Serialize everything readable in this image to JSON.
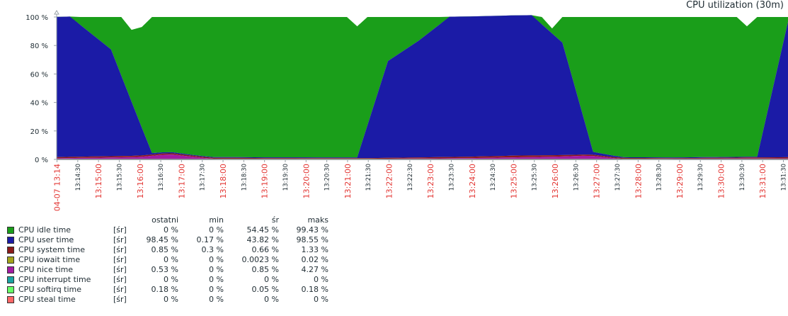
{
  "title": "CPU utilization (30m)",
  "chart_data": {
    "type": "area",
    "stacked": true,
    "ylim": [
      0,
      100
    ],
    "y_ticks": [
      "0 %",
      "20 %",
      "40 %",
      "60 %",
      "80 %",
      "100 %"
    ],
    "x_tick_labels": [
      {
        "label": "04-07 13:14",
        "red": true
      },
      {
        "label": "13:14:30",
        "red": false
      },
      {
        "label": "13:15:00",
        "red": true
      },
      {
        "label": "13:15:30",
        "red": false
      },
      {
        "label": "13:16:00",
        "red": true
      },
      {
        "label": "13:16:30",
        "red": false
      },
      {
        "label": "13:17:00",
        "red": true
      },
      {
        "label": "13:17:30",
        "red": false
      },
      {
        "label": "13:18:00",
        "red": true
      },
      {
        "label": "13:18:30",
        "red": false
      },
      {
        "label": "13:19:00",
        "red": true
      },
      {
        "label": "13:19:30",
        "red": false
      },
      {
        "label": "13:20:00",
        "red": true
      },
      {
        "label": "13:20:30",
        "red": false
      },
      {
        "label": "13:21:00",
        "red": true
      },
      {
        "label": "13:21:30",
        "red": false
      },
      {
        "label": "13:22:00",
        "red": true
      },
      {
        "label": "13:22:30",
        "red": false
      },
      {
        "label": "13:23:00",
        "red": true
      },
      {
        "label": "13:23:30",
        "red": false
      },
      {
        "label": "13:24:00",
        "red": true
      },
      {
        "label": "13:24:30",
        "red": false
      },
      {
        "label": "13:25:00",
        "red": true
      },
      {
        "label": "13:25:30",
        "red": false
      },
      {
        "label": "13:26:00",
        "red": true
      },
      {
        "label": "13:26:30",
        "red": false
      },
      {
        "label": "13:27:00",
        "red": true
      },
      {
        "label": "13:27:30",
        "red": false
      },
      {
        "label": "13:28:00",
        "red": true
      },
      {
        "label": "13:28:30",
        "red": false
      },
      {
        "label": "13:29:00",
        "red": true
      },
      {
        "label": "13:29:30",
        "red": false
      },
      {
        "label": "13:30:00",
        "red": true
      },
      {
        "label": "13:30:30",
        "red": false
      },
      {
        "label": "13:31:00",
        "red": true
      },
      {
        "label": "13:31:30",
        "red": false
      }
    ],
    "x_minutes": [
      0,
      0.3,
      1.3,
      2.3,
      3.3,
      4.3,
      5.3,
      6.3,
      7.3,
      8.3,
      9.3,
      10.3,
      11.3,
      12.3,
      13.3,
      14.3,
      15.3,
      16.3,
      17.3,
      18.3,
      19.3,
      20.3,
      21.3,
      22.3,
      23.3,
      24.3,
      25.3,
      26.3,
      27.3,
      28.3,
      29.3,
      30.3,
      31.3,
      32.3,
      33.3,
      34.3,
      35.3,
      36.3,
      37.3,
      38.3,
      39.3,
      40.3,
      41.3,
      42.3,
      43.3,
      44.3,
      45.3,
      46.3,
      47.3,
      48.3,
      49.3,
      50.3,
      51.3,
      52.3,
      53.3,
      54.3,
      55.3,
      56.3,
      57.3,
      58.3,
      59.3,
      60.3,
      61.3,
      62.3,
      63.3,
      64.3,
      65.3,
      66.3,
      67.3,
      68.3,
      69.3,
      70.3,
      71.3
    ],
    "series": [
      {
        "name": "CPU idle time",
        "color": "#1a9e1a"
      },
      {
        "name": "CPU user time",
        "color": "#1b1ba6"
      },
      {
        "name": "CPU system time",
        "color": "#8b1a1a"
      },
      {
        "name": "CPU iowait time",
        "color": "#a3a31a"
      },
      {
        "name": "CPU nice time",
        "color": "#a31aa3"
      },
      {
        "name": "CPU interrupt time",
        "color": "#1aa3a3"
      },
      {
        "name": "CPU softirq time",
        "color": "#66ff66"
      },
      {
        "name": "CPU steal time",
        "color": "#ff6666"
      }
    ],
    "user_profile": [
      [
        0,
        98.5
      ],
      [
        1.3,
        98.5
      ],
      [
        5.3,
        75
      ],
      [
        9.3,
        1
      ],
      [
        13.3,
        0.5
      ],
      [
        26.3,
        0.5
      ],
      [
        29.3,
        0.5
      ],
      [
        32.3,
        68
      ],
      [
        35.3,
        82
      ],
      [
        38.3,
        98.5
      ],
      [
        46.3,
        98.5
      ],
      [
        49.3,
        79
      ],
      [
        52.3,
        2
      ],
      [
        55.3,
        0.5
      ],
      [
        68.3,
        0.5
      ],
      [
        71.3,
        95
      ]
    ],
    "system_profile": [
      [
        0,
        0.85
      ],
      [
        10,
        0.9
      ],
      [
        20,
        0.5
      ],
      [
        30,
        0.5
      ],
      [
        45,
        1.2
      ],
      [
        60,
        0.4
      ],
      [
        71.3,
        0.85
      ]
    ],
    "nice_profile": [
      [
        0,
        0.6
      ],
      [
        8,
        1.5
      ],
      [
        11,
        3.5
      ],
      [
        15,
        0.3
      ],
      [
        30,
        0.2
      ],
      [
        40,
        0.7
      ],
      [
        49,
        1.8
      ],
      [
        52,
        2.5
      ],
      [
        55,
        0.2
      ],
      [
        71.3,
        0.53
      ]
    ],
    "softirq_profile": [
      [
        0,
        0.18
      ],
      [
        71.3,
        0.18
      ]
    ],
    "idle_dips": [
      [
        7.3,
        91
      ],
      [
        8.3,
        93
      ],
      [
        29.3,
        93.5
      ],
      [
        40.3,
        96
      ],
      [
        48.3,
        92
      ],
      [
        67.3,
        93.5
      ]
    ]
  },
  "legend": {
    "headers": {
      "last": "ostatni",
      "min": "min",
      "avg": "śr",
      "max": "maks"
    },
    "rows": [
      {
        "name": "CPU idle time",
        "func": "[śr]",
        "last": "0 %",
        "min": "0 %",
        "avg": "54.45 %",
        "max": "99.43 %",
        "color": "#1a9e1a"
      },
      {
        "name": "CPU user time",
        "func": "[śr]",
        "last": "98.45 %",
        "min": "0.17 %",
        "avg": "43.82 %",
        "max": "98.55 %",
        "color": "#1b1ba6"
      },
      {
        "name": "CPU system time",
        "func": "[śr]",
        "last": "0.85 %",
        "min": "0.3 %",
        "avg": "0.66 %",
        "max": "1.33 %",
        "color": "#8b1a1a"
      },
      {
        "name": "CPU iowait time",
        "func": "[śr]",
        "last": "0 %",
        "min": "0 %",
        "avg": "0.0023 %",
        "max": "0.02 %",
        "color": "#a3a31a"
      },
      {
        "name": "CPU nice time",
        "func": "[śr]",
        "last": "0.53 %",
        "min": "0 %",
        "avg": "0.85 %",
        "max": "4.27 %",
        "color": "#a31aa3"
      },
      {
        "name": "CPU interrupt time",
        "func": "[śr]",
        "last": "0 %",
        "min": "0 %",
        "avg": "0 %",
        "max": "0 %",
        "color": "#1aa3a3"
      },
      {
        "name": "CPU softirq time",
        "func": "[śr]",
        "last": "0.18 %",
        "min": "0 %",
        "avg": "0.05 %",
        "max": "0.18 %",
        "color": "#66ff66"
      },
      {
        "name": "CPU steal time",
        "func": "[śr]",
        "last": "0 %",
        "min": "0 %",
        "avg": "0 %",
        "max": "0 %",
        "color": "#ff6666"
      }
    ]
  }
}
